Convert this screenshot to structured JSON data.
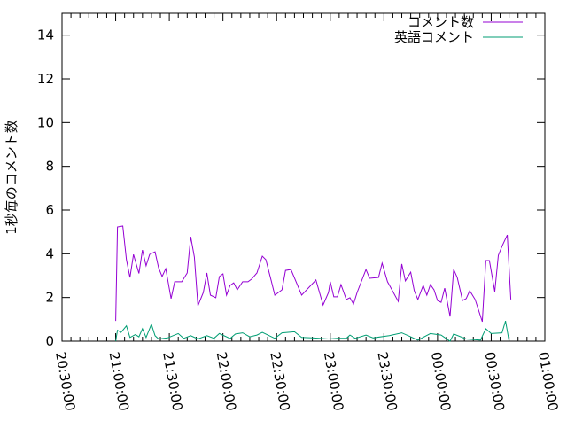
{
  "chart_data": {
    "type": "line",
    "title": "",
    "xlabel": "",
    "ylabel": "1秒毎のコメント数",
    "xlim": [
      "20:30:00",
      "01:00:00"
    ],
    "ylim": [
      0,
      15
    ],
    "x_ticks": [
      "20:30:00",
      "21:00:00",
      "21:30:00",
      "22:00:00",
      "22:30:00",
      "23:00:00",
      "23:30:00",
      "00:00:00",
      "00:30:00",
      "01:00:00"
    ],
    "y_ticks": [
      0,
      2,
      4,
      6,
      8,
      10,
      12,
      14
    ],
    "grid": false,
    "legend_position": "top-right",
    "series": [
      {
        "name": "コメント数",
        "color": "#9400d3",
        "points": [
          [
            "21:00",
            0.93
          ],
          [
            "21:01",
            5.23
          ],
          [
            "21:04",
            5.27
          ],
          [
            "21:06",
            3.73
          ],
          [
            "21:08",
            2.92
          ],
          [
            "21:10",
            3.97
          ],
          [
            "21:13",
            3.1
          ],
          [
            "21:15",
            4.17
          ],
          [
            "21:17",
            3.45
          ],
          [
            "21:19",
            3.97
          ],
          [
            "21:22",
            4.09
          ],
          [
            "21:24",
            3.36
          ],
          [
            "21:26",
            2.96
          ],
          [
            "21:28",
            3.32
          ],
          [
            "21:31",
            1.95
          ],
          [
            "21:33",
            2.72
          ],
          [
            "21:37",
            2.72
          ],
          [
            "21:40",
            3.12
          ],
          [
            "21:42",
            4.78
          ],
          [
            "21:44",
            3.85
          ],
          [
            "21:46",
            1.62
          ],
          [
            "21:49",
            2.23
          ],
          [
            "21:51",
            3.12
          ],
          [
            "21:53",
            2.11
          ],
          [
            "21:56",
            1.99
          ],
          [
            "21:58",
            2.96
          ],
          [
            "22:00",
            3.08
          ],
          [
            "22:02",
            2.11
          ],
          [
            "22:04",
            2.55
          ],
          [
            "22:06",
            2.67
          ],
          [
            "22:08",
            2.35
          ],
          [
            "22:11",
            2.72
          ],
          [
            "22:14",
            2.72
          ],
          [
            "22:16",
            2.84
          ],
          [
            "22:19",
            3.12
          ],
          [
            "22:22",
            3.89
          ],
          [
            "22:24",
            3.73
          ],
          [
            "22:27",
            2.76
          ],
          [
            "22:29",
            2.11
          ],
          [
            "22:33",
            2.35
          ],
          [
            "22:35",
            3.24
          ],
          [
            "22:38",
            3.28
          ],
          [
            "22:44",
            2.11
          ],
          [
            "22:52",
            2.8
          ],
          [
            "22:56",
            1.66
          ],
          [
            "22:59",
            2.23
          ],
          [
            "23:00",
            2.72
          ],
          [
            "23:02",
            2.03
          ],
          [
            "23:04",
            2.03
          ],
          [
            "23:06",
            2.59
          ],
          [
            "23:09",
            1.91
          ],
          [
            "23:11",
            1.99
          ],
          [
            "23:13",
            1.7
          ],
          [
            "23:15",
            2.23
          ],
          [
            "23:20",
            3.28
          ],
          [
            "23:22",
            2.88
          ],
          [
            "23:27",
            2.92
          ],
          [
            "23:29",
            3.57
          ],
          [
            "23:32",
            2.72
          ],
          [
            "23:34",
            2.43
          ],
          [
            "23:38",
            1.82
          ],
          [
            "23:40",
            3.53
          ],
          [
            "23:42",
            2.76
          ],
          [
            "23:45",
            3.16
          ],
          [
            "23:47",
            2.31
          ],
          [
            "23:49",
            1.91
          ],
          [
            "23:52",
            2.55
          ],
          [
            "23:54",
            2.11
          ],
          [
            "23:56",
            2.59
          ],
          [
            "23:58",
            2.35
          ],
          [
            "00:00",
            1.86
          ],
          [
            "00:02",
            1.78
          ],
          [
            "00:04",
            2.43
          ],
          [
            "00:07",
            1.13
          ],
          [
            "00:09",
            3.28
          ],
          [
            "00:11",
            2.92
          ],
          [
            "00:14",
            1.86
          ],
          [
            "00:16",
            1.95
          ],
          [
            "00:18",
            2.31
          ],
          [
            "00:21",
            1.91
          ],
          [
            "00:25",
            0.89
          ],
          [
            "00:27",
            3.69
          ],
          [
            "00:29",
            3.69
          ],
          [
            "00:32",
            2.27
          ],
          [
            "00:34",
            3.93
          ],
          [
            "00:36",
            4.34
          ],
          [
            "00:39",
            4.86
          ],
          [
            "00:41",
            1.91
          ]
        ]
      },
      {
        "name": "英語コメント",
        "color": "#009e73",
        "points": [
          [
            "21:00",
            0
          ],
          [
            "21:01",
            0.5
          ],
          [
            "21:03",
            0.4
          ],
          [
            "21:06",
            0.7
          ],
          [
            "21:08",
            0.17
          ],
          [
            "21:11",
            0.3
          ],
          [
            "21:13",
            0.2
          ],
          [
            "21:15",
            0.57
          ],
          [
            "21:17",
            0.17
          ],
          [
            "21:20",
            0.78
          ],
          [
            "21:22",
            0.25
          ],
          [
            "21:24",
            0.1
          ],
          [
            "21:29",
            0.15
          ],
          [
            "21:35",
            0.35
          ],
          [
            "21:38",
            0.13
          ],
          [
            "21:42",
            0.25
          ],
          [
            "21:46",
            0.1
          ],
          [
            "21:51",
            0.25
          ],
          [
            "21:55",
            0.13
          ],
          [
            "21:58",
            0.35
          ],
          [
            "22:04",
            0.12
          ],
          [
            "22:07",
            0.33
          ],
          [
            "22:11",
            0.38
          ],
          [
            "22:15",
            0.2
          ],
          [
            "22:19",
            0.28
          ],
          [
            "22:22",
            0.4
          ],
          [
            "22:29",
            0.13
          ],
          [
            "22:33",
            0.38
          ],
          [
            "22:40",
            0.43
          ],
          [
            "22:44",
            0.17
          ],
          [
            "22:50",
            0.15
          ],
          [
            "22:59",
            0.1
          ],
          [
            "23:04",
            0.13
          ],
          [
            "23:09",
            0.13
          ],
          [
            "23:11",
            0.28
          ],
          [
            "23:14",
            0.13
          ],
          [
            "23:20",
            0.28
          ],
          [
            "23:24",
            0.15
          ],
          [
            "23:33",
            0.25
          ],
          [
            "23:40",
            0.38
          ],
          [
            "23:45",
            0.2
          ],
          [
            "23:49",
            0.05
          ],
          [
            "23:56",
            0.35
          ],
          [
            "00:02",
            0.28
          ],
          [
            "00:07",
            0
          ],
          [
            "00:09",
            0.33
          ],
          [
            "00:16",
            0.1
          ],
          [
            "00:24",
            0.05
          ],
          [
            "00:27",
            0.57
          ],
          [
            "00:30",
            0.35
          ],
          [
            "00:36",
            0.38
          ],
          [
            "00:38",
            0.93
          ],
          [
            "00:40",
            0
          ]
        ]
      }
    ]
  }
}
